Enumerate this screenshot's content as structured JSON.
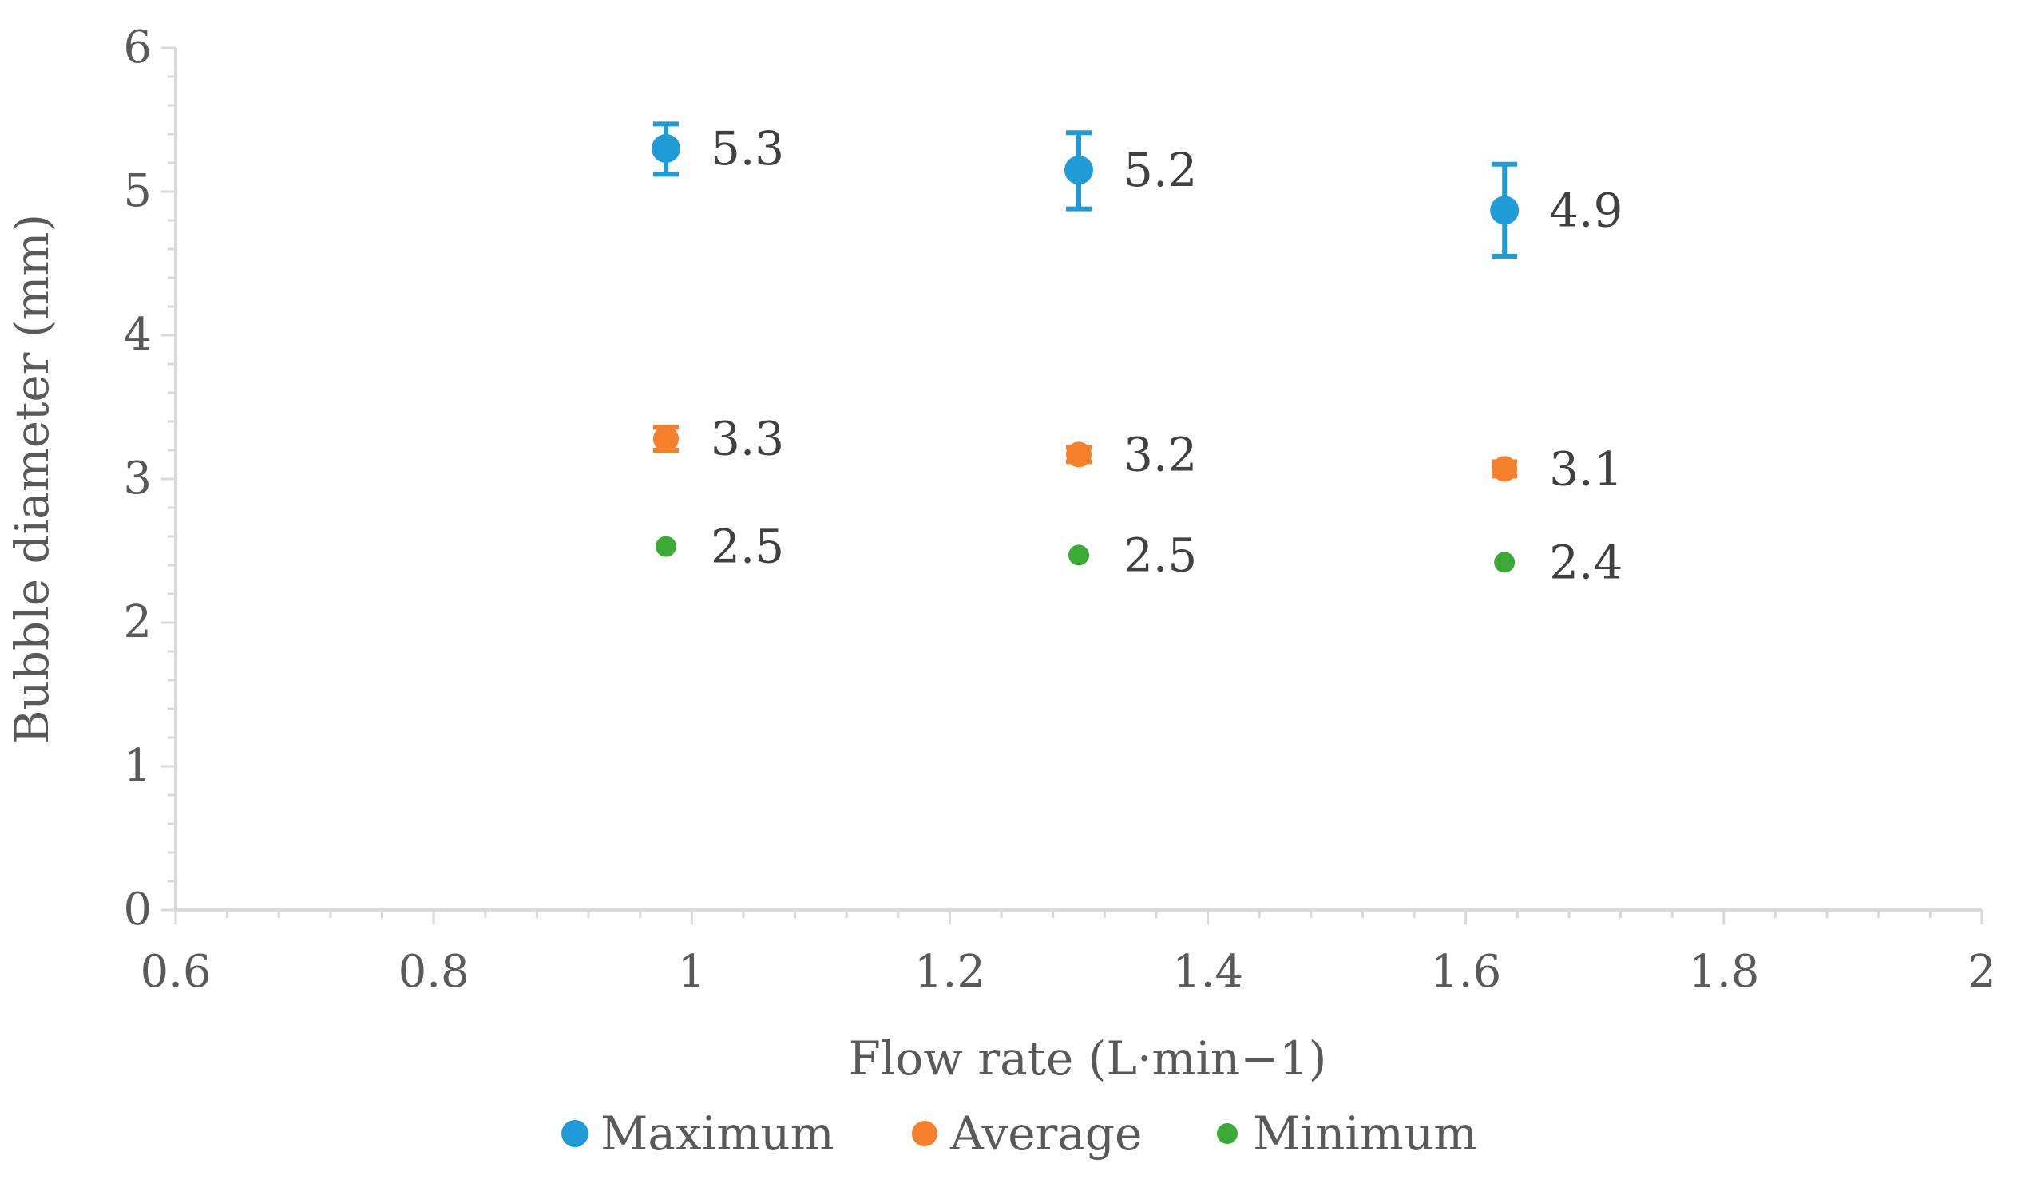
{
  "chart_data": {
    "type": "scatter",
    "title": "",
    "xlabel": "Flow rate (L·min−1)",
    "ylabel": "Bubble diameter (mm)",
    "xlim": [
      0.6,
      2
    ],
    "ylim": [
      0,
      6
    ],
    "x_ticks": [
      "0.6",
      "0.8",
      "1",
      "1.2",
      "1.4",
      "1.6",
      "1.8",
      "2"
    ],
    "y_ticks": [
      "0",
      "1",
      "2",
      "3",
      "4",
      "5",
      "6"
    ],
    "grid": false,
    "legend_position": "bottom",
    "series": [
      {
        "name": "Maximum",
        "color": "#1f9bd7",
        "marker": "circle",
        "points": [
          {
            "x": 0.98,
            "y": 5.3,
            "err_low": 5.12,
            "err_high": 5.47,
            "label": "5.3"
          },
          {
            "x": 1.3,
            "y": 5.15,
            "err_low": 4.88,
            "err_high": 5.41,
            "label": "5.2"
          },
          {
            "x": 1.63,
            "y": 4.87,
            "err_low": 4.55,
            "err_high": 5.19,
            "label": "4.9"
          }
        ]
      },
      {
        "name": "Average",
        "color": "#f57f2a",
        "marker": "circle",
        "points": [
          {
            "x": 0.98,
            "y": 3.28,
            "err_low": 3.2,
            "err_high": 3.36,
            "label": "3.3"
          },
          {
            "x": 1.3,
            "y": 3.17,
            "err_low": 3.12,
            "err_high": 3.22,
            "label": "3.2"
          },
          {
            "x": 1.63,
            "y": 3.07,
            "err_low": 3.02,
            "err_high": 3.12,
            "label": "3.1"
          }
        ]
      },
      {
        "name": "Minimum",
        "color": "#3aaa35",
        "marker": "circle",
        "points": [
          {
            "x": 0.98,
            "y": 2.53,
            "err_low": null,
            "err_high": null,
            "label": "2.5"
          },
          {
            "x": 1.3,
            "y": 2.47,
            "err_low": null,
            "err_high": null,
            "label": "2.5"
          },
          {
            "x": 1.63,
            "y": 2.42,
            "err_low": null,
            "err_high": null,
            "label": "2.4"
          }
        ]
      }
    ]
  }
}
